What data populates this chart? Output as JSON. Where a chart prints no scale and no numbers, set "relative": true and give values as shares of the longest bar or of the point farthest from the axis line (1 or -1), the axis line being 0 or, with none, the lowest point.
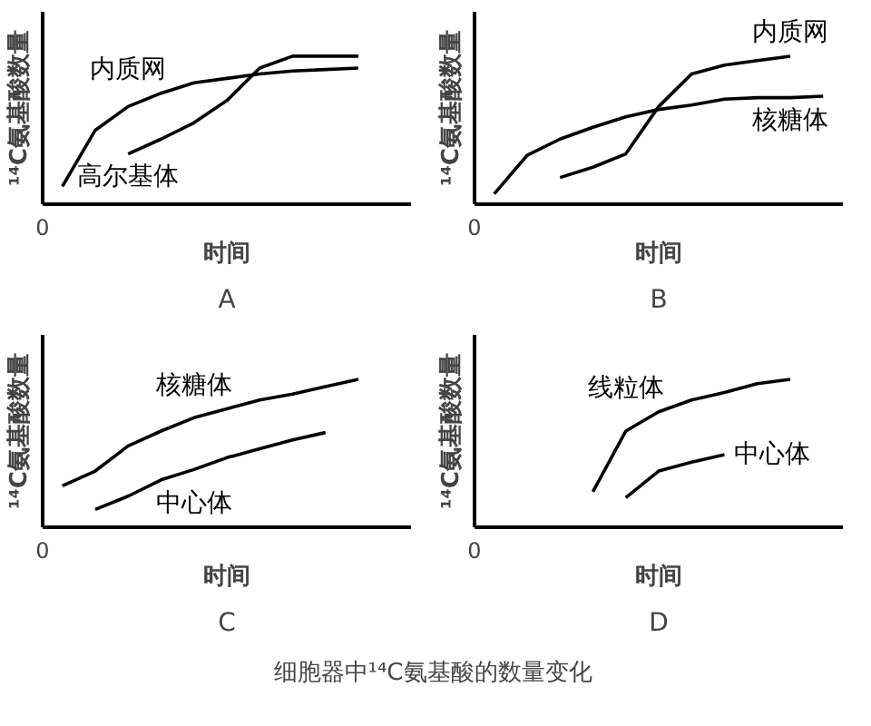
{
  "chart_data": [
    {
      "type": "line",
      "relative": true,
      "title": "A",
      "xlabel": "时间",
      "ylabel": "¹⁴C氨基酸数量",
      "annotations": [
        "0"
      ],
      "categories": [
        null,
        null,
        null,
        null,
        null,
        null,
        null,
        null,
        null,
        null,
        null
      ],
      "series": [
        {
          "name": "内质网",
          "color": "#000000",
          "values": [
            0.12,
            0.5,
            0.66,
            0.75,
            0.82,
            0.85,
            0.88,
            0.9,
            0.91,
            0.92,
            null
          ]
        },
        {
          "name": "高尔基体",
          "color": "#000000",
          "values": [
            null,
            null,
            0.34,
            0.44,
            0.55,
            0.7,
            0.92,
            1,
            1,
            1,
            null
          ]
        }
      ]
    },
    {
      "type": "line",
      "relative": true,
      "title": "B",
      "xlabel": "时间",
      "ylabel": "¹⁴C氨基酸数量",
      "annotations": [
        "0"
      ],
      "categories": [
        null,
        null,
        null,
        null,
        null,
        null,
        null,
        null,
        null,
        null,
        null
      ],
      "series": [
        {
          "name": "内质网",
          "color": "#000000",
          "values": [
            null,
            null,
            0.18,
            0.25,
            0.34,
            0.66,
            0.88,
            0.94,
            0.97,
            1,
            null
          ]
        },
        {
          "name": "核糖体",
          "color": "#000000",
          "values": [
            0.07,
            0.33,
            0.44,
            0.52,
            0.59,
            0.64,
            0.67,
            0.71,
            0.72,
            0.72,
            0.73
          ]
        }
      ]
    },
    {
      "type": "line",
      "relative": true,
      "title": "C",
      "xlabel": "时间",
      "ylabel": "¹⁴C氨基酸数量",
      "annotations": [
        "0"
      ],
      "categories": [
        null,
        null,
        null,
        null,
        null,
        null,
        null,
        null,
        null,
        null,
        null
      ],
      "series": [
        {
          "name": "核糖体",
          "color": "#000000",
          "values": [
            0.28,
            0.38,
            0.55,
            0.65,
            0.74,
            0.8,
            0.86,
            0.9,
            0.95,
            1,
            null
          ]
        },
        {
          "name": "中心体",
          "color": "#000000",
          "values": [
            null,
            0.12,
            0.21,
            0.32,
            0.39,
            0.47,
            0.53,
            0.59,
            0.64,
            null,
            null
          ]
        }
      ]
    },
    {
      "type": "line",
      "relative": true,
      "title": "D",
      "xlabel": "时间",
      "ylabel": "¹⁴C氨基酸数量",
      "annotations": [
        "0"
      ],
      "categories": [
        null,
        null,
        null,
        null,
        null,
        null,
        null,
        null,
        null,
        null,
        null
      ],
      "series": [
        {
          "name": "线粒体",
          "color": "#000000",
          "values": [
            null,
            null,
            null,
            0.24,
            0.65,
            0.78,
            0.86,
            0.91,
            0.97,
            1,
            null
          ]
        },
        {
          "name": "中心体",
          "color": "#000000",
          "values": [
            null,
            null,
            null,
            null,
            0.2,
            0.38,
            0.44,
            0.49,
            null,
            null,
            null
          ]
        }
      ]
    },
    {
      "type": "other",
      "title": "细胞器中¹⁴C氨基酸的数量变化"
    }
  ]
}
